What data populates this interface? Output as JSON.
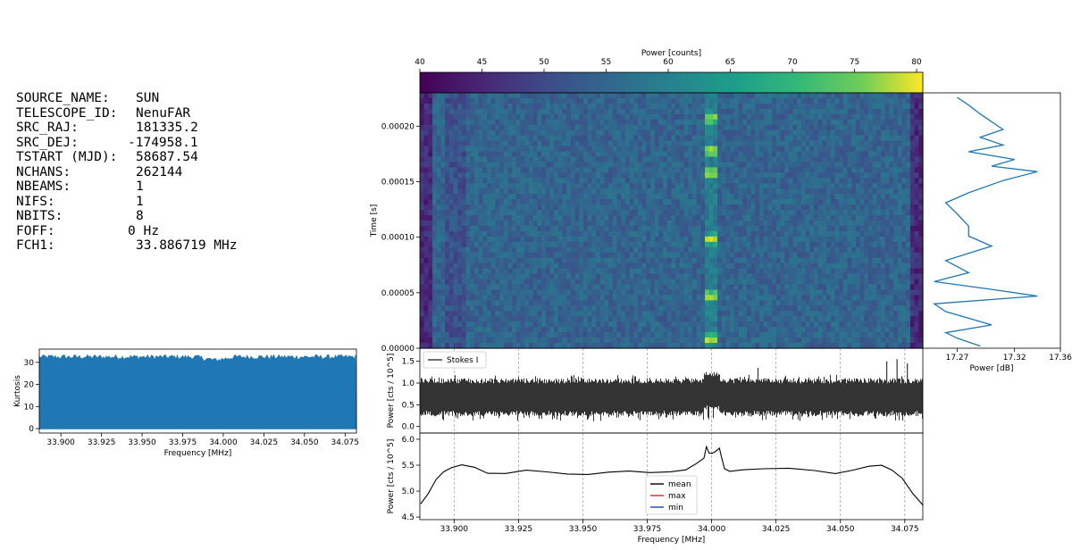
{
  "header": {
    "items": [
      {
        "key": "SOURCE_NAME:",
        "value": "SUN"
      },
      {
        "key": "TELESCOPE_ID:",
        "value": "NenuFAR"
      },
      {
        "key": "SRC_RAJ:",
        "value": "181335.2"
      },
      {
        "key": "SRC_DEJ:",
        "value": "-174958.1"
      },
      {
        "key": "TSTART (MJD):",
        "value": "58687.54"
      },
      {
        "key": "NCHANS:",
        "value": "262144"
      },
      {
        "key": "NBEAMS:",
        "value": "1"
      },
      {
        "key": "NIFS:",
        "value": "1"
      },
      {
        "key": "NBITS:",
        "value": "8"
      },
      {
        "key": "FOFF:",
        "value": "0 Hz"
      },
      {
        "key": "FCH1:",
        "value": "33.886719 MHz"
      }
    ]
  },
  "chart_data": [
    {
      "id": "kurtosis",
      "type": "area",
      "title": "",
      "xlabel": "Frequency [MHz]",
      "ylabel": "Kurtosis",
      "xlim": [
        33.8867,
        34.082
      ],
      "ylim": [
        -2,
        36
      ],
      "xticks": [
        "33.900",
        "33.925",
        "33.950",
        "33.975",
        "34.000",
        "34.025",
        "34.050",
        "34.075"
      ],
      "yticks": [
        "0",
        "10",
        "20",
        "30"
      ],
      "baseline": 0,
      "envelope_mean": 32.5,
      "envelope_dip_at": 33.995,
      "color": "#1f77b4"
    },
    {
      "id": "colorbar",
      "type": "heatmap",
      "label": "Power [counts]",
      "range": [
        40,
        80.5
      ],
      "ticks": [
        "40",
        "45",
        "50",
        "55",
        "60",
        "65",
        "70",
        "75",
        "80"
      ],
      "colormap": "viridis"
    },
    {
      "id": "waterfall",
      "type": "heatmap",
      "xlabel": "",
      "ylabel": "Time [s]",
      "ylim": [
        0.0,
        0.00023
      ],
      "yticks": [
        "0.00000",
        "0.00005",
        "0.00010",
        "0.00015",
        "0.00020"
      ],
      "time_bins": 48,
      "freq_bins": 120,
      "base_power": 53,
      "bright_feature": {
        "freq_center_mhz": 34.0,
        "freq_width_mhz": 0.0045,
        "bursts_time_s": [
          8e-06,
          4.7e-05,
          9.8e-05,
          0.000158,
          0.000178,
          0.000207
        ],
        "peak_power": 78
      }
    },
    {
      "id": "time-profile",
      "type": "line",
      "xlabel": "Power [dB]",
      "xlim": [
        17.24,
        17.36
      ],
      "xticks": [
        "17.27",
        "17.32",
        "17.36"
      ],
      "ylim": [
        0.0,
        0.00023
      ],
      "y": [
        2e-06,
        9e-06,
        1.4e-05,
        2.1e-05,
        3.3e-05,
        4e-05,
        4.7e-05,
        5.3e-05,
        6e-05,
        6.8e-05,
        7.9e-05,
        9.2e-05,
        0.000101,
        0.00011,
        0.000121,
        0.000131,
        0.00014,
        0.000151,
        0.000159,
        0.000164,
        0.00017,
        0.000177,
        0.000183,
        0.00019,
        0.000197,
        0.000204,
        0.000211,
        0.000219,
        0.000226
      ],
      "x": [
        17.29,
        17.27,
        17.26,
        17.3,
        17.26,
        17.25,
        17.34,
        17.3,
        17.25,
        17.28,
        17.26,
        17.3,
        17.28,
        17.28,
        17.27,
        17.26,
        17.28,
        17.31,
        17.34,
        17.3,
        17.32,
        17.28,
        17.31,
        17.29,
        17.31,
        17.3,
        17.29,
        17.28,
        17.27
      ],
      "color": "#1f77b4"
    },
    {
      "id": "stokes",
      "type": "line",
      "ylabel": "Power [cts / 10^5]",
      "ylim": [
        -0.15,
        1.8
      ],
      "yticks": [
        "0.0",
        "0.5",
        "1.0",
        "1.5"
      ],
      "xlim": [
        33.8867,
        34.082
      ],
      "legend": [
        "Stokes I"
      ],
      "legend_position": "top-left",
      "band_low": 0.3,
      "band_high": 1.05,
      "spike_freqs_mhz": [
        34.001,
        34.018,
        34.068,
        34.072,
        34.076
      ],
      "spike_heights": [
        1.25,
        1.35,
        1.5,
        1.55,
        1.45
      ],
      "color": "#333333"
    },
    {
      "id": "bandpass",
      "type": "line",
      "xlabel": "Frequency [MHz]",
      "ylabel": "Power [cts / 10^5]",
      "xlim": [
        33.8867,
        34.082
      ],
      "ylim": [
        4.45,
        6.12
      ],
      "xticks": [
        "33.900",
        "33.925",
        "33.950",
        "33.975",
        "34.000",
        "34.025",
        "34.050",
        "34.075"
      ],
      "yticks": [
        "4.5",
        "5.0",
        "5.5",
        "6.0"
      ],
      "legend": [
        "mean",
        "max",
        "min"
      ],
      "legend_position": "bottom-center",
      "legend_colors": [
        "#000000",
        "#d62728",
        "#1f3fb4"
      ],
      "x": [
        33.887,
        33.89,
        33.893,
        33.896,
        33.899,
        33.903,
        33.908,
        33.913,
        33.92,
        33.928,
        33.936,
        33.944,
        33.952,
        33.96,
        33.968,
        33.976,
        33.984,
        33.99,
        33.994,
        33.997,
        33.998,
        33.999,
        34.0,
        34.001,
        34.002,
        34.003,
        34.004,
        34.005,
        34.007,
        34.012,
        34.02,
        34.03,
        34.04,
        34.048,
        34.055,
        34.061,
        34.066,
        34.07,
        34.074,
        34.078,
        34.082
      ],
      "y": [
        4.76,
        4.96,
        5.22,
        5.38,
        5.46,
        5.5,
        5.45,
        5.34,
        5.34,
        5.41,
        5.38,
        5.33,
        5.33,
        5.37,
        5.38,
        5.36,
        5.38,
        5.42,
        5.52,
        5.64,
        5.86,
        5.74,
        5.72,
        5.74,
        5.79,
        5.83,
        5.62,
        5.44,
        5.38,
        5.42,
        5.43,
        5.45,
        5.4,
        5.33,
        5.4,
        5.48,
        5.49,
        5.4,
        5.24,
        4.96,
        4.74
      ],
      "vlines_mhz": [
        33.9,
        33.925,
        33.95,
        33.975,
        34.0,
        34.025,
        34.05,
        34.075
      ]
    }
  ]
}
